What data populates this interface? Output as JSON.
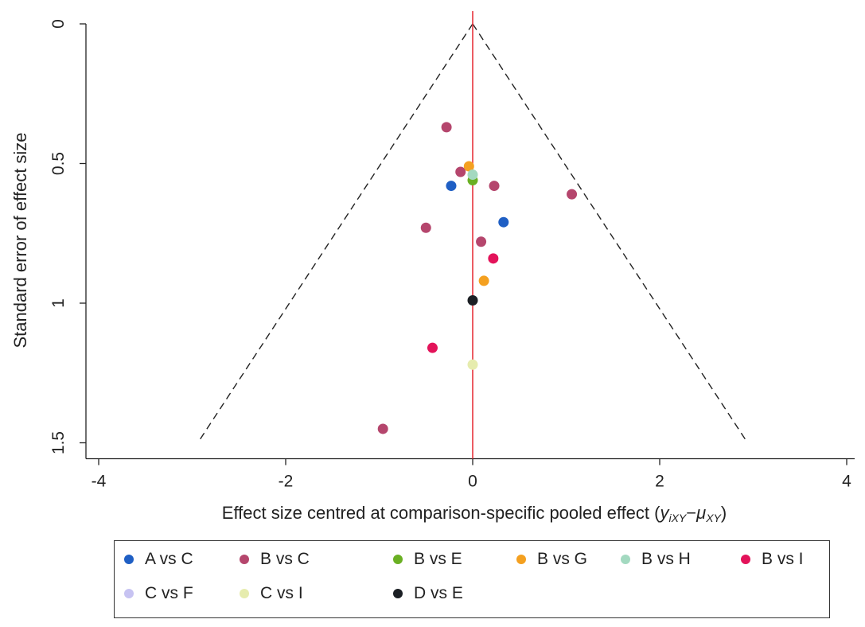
{
  "chart_data": {
    "type": "scatter",
    "title": "",
    "xlabel": "Effect size centred at comparison-specific pooled effect (",
    "xlabel_math": "y",
    "xlabel_sub1": "iXY",
    "xlabel_minus": "−",
    "xlabel_mu": "μ",
    "xlabel_sub2": "XY",
    "xlabel_close": ")",
    "ylabel": "Standard error of effect size",
    "xlim": [
      -4,
      4
    ],
    "ylim": [
      0,
      1.5
    ],
    "y_reversed": true,
    "x_ticks": [
      -4,
      -2,
      0,
      2,
      4
    ],
    "y_ticks": [
      0,
      0.5,
      1,
      1.5
    ],
    "x_tick_labels": [
      "-4",
      "-2",
      "0",
      "2",
      "4"
    ],
    "y_tick_labels": [
      "0",
      "0.5",
      "1",
      "1.5"
    ],
    "grid": false,
    "reference_line": {
      "x": 0,
      "color": "#e8333c"
    },
    "funnel": {
      "apex": [
        0,
        0
      ],
      "y_max": 1.5,
      "z": 1.96,
      "style": "dashed",
      "color": "#222222"
    },
    "legend_position": "bottom",
    "series": [
      {
        "name": "A vs C",
        "color": "#1f5fc4",
        "points": [
          [
            -0.23,
            0.58
          ],
          [
            0.33,
            0.71
          ]
        ]
      },
      {
        "name": "B vs C",
        "color": "#b5466d",
        "points": [
          [
            -0.28,
            0.37
          ],
          [
            -0.13,
            0.53
          ],
          [
            0.23,
            0.58
          ],
          [
            1.06,
            0.61
          ],
          [
            -0.5,
            0.73
          ],
          [
            0.09,
            0.78
          ],
          [
            -0.96,
            1.45
          ]
        ]
      },
      {
        "name": "B vs E",
        "color": "#6ab023",
        "points": [
          [
            0.0,
            0.56
          ]
        ]
      },
      {
        "name": "B vs G",
        "color": "#f4a020",
        "points": [
          [
            -0.04,
            0.51
          ],
          [
            0.12,
            0.92
          ]
        ]
      },
      {
        "name": "B vs H",
        "color": "#a3d9c0",
        "points": [
          [
            0.0,
            0.54
          ]
        ]
      },
      {
        "name": "B vs I",
        "color": "#e3135a",
        "points": [
          [
            0.22,
            0.84
          ],
          [
            -0.43,
            1.16
          ]
        ]
      },
      {
        "name": "C vs F",
        "color": "#c7c3f2",
        "points": []
      },
      {
        "name": "C vs I",
        "color": "#e6ecae",
        "points": [
          [
            0.0,
            1.22
          ]
        ]
      },
      {
        "name": "D vs E",
        "color": "#1b1f24",
        "points": [
          [
            0.0,
            0.99
          ]
        ]
      }
    ]
  }
}
